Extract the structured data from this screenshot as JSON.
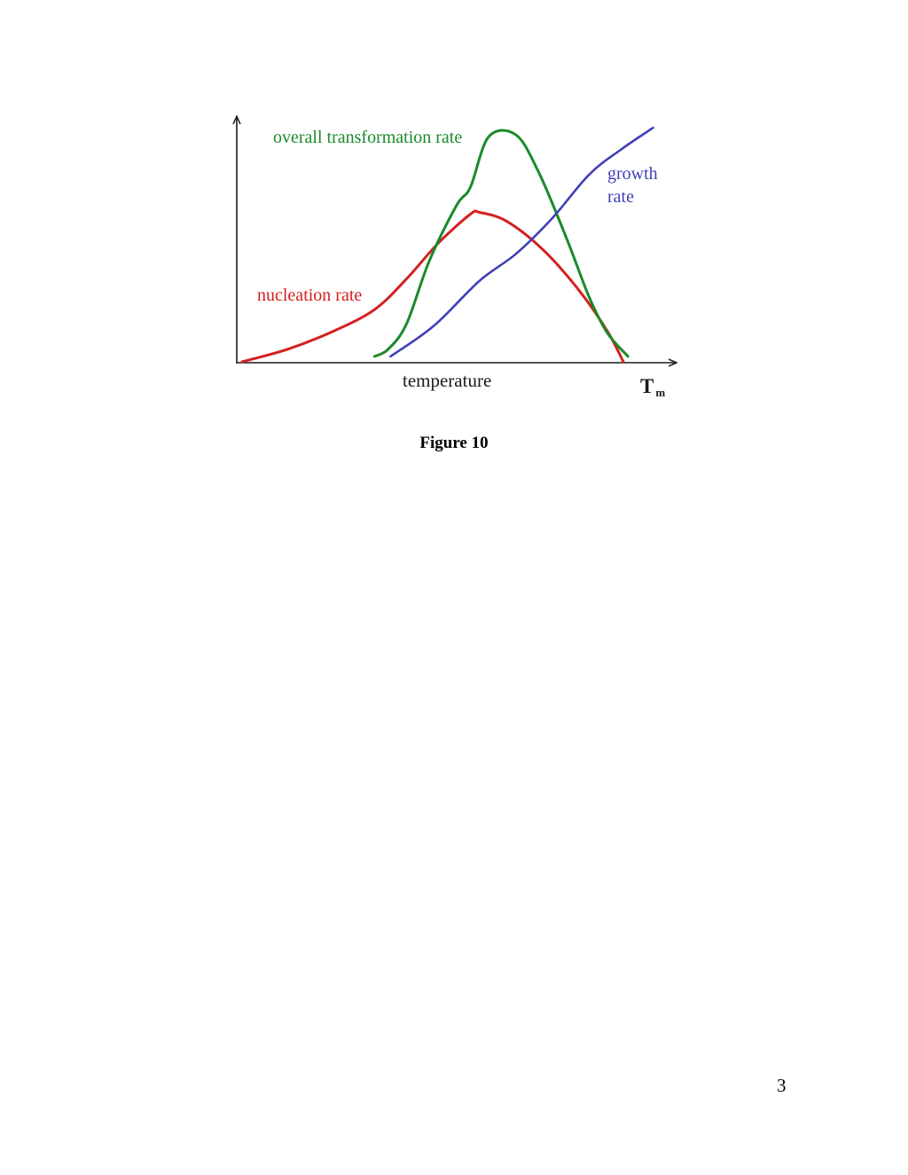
{
  "figure": {
    "caption": "Figure 10"
  },
  "page": {
    "number": "3"
  },
  "colors": {
    "axes": "#1a1a1a",
    "nucleation": "#d42020",
    "overall": "#1a8a2a",
    "growth": "#4040b8"
  },
  "chart_data": {
    "type": "line",
    "title": "",
    "xlabel": "temperature",
    "ylabel": "",
    "x_end_label": "T",
    "x_end_label_subscript": "m",
    "grid": false,
    "legend": "none",
    "series": [
      {
        "name": "nucleation rate",
        "color": "#d42020",
        "x": [
          0.0,
          0.1,
          0.2,
          0.29,
          0.36,
          0.43,
          0.5,
          0.52,
          0.58,
          0.66,
          0.74,
          0.8,
          0.835
        ],
        "y": [
          0.0,
          0.07,
          0.17,
          0.29,
          0.46,
          0.66,
          0.82,
          0.83,
          0.78,
          0.62,
          0.39,
          0.17,
          0.0
        ]
      },
      {
        "name": "overall transformation rate",
        "color": "#1a8a2a",
        "x": [
          0.29,
          0.32,
          0.36,
          0.41,
          0.47,
          0.5,
          0.54,
          0.6,
          0.65,
          0.71,
          0.76,
          0.8,
          0.845
        ],
        "y": [
          0.03,
          0.07,
          0.21,
          0.56,
          0.87,
          0.97,
          1.25,
          1.26,
          1.05,
          0.69,
          0.36,
          0.16,
          0.03
        ]
      },
      {
        "name": "growth rate",
        "color": "#4040b8",
        "x": [
          0.325,
          0.42,
          0.52,
          0.6,
          0.68,
          0.76,
          0.83,
          0.9
        ],
        "y": [
          0.03,
          0.2,
          0.45,
          0.6,
          0.8,
          1.04,
          1.18,
          1.3
        ]
      }
    ]
  }
}
